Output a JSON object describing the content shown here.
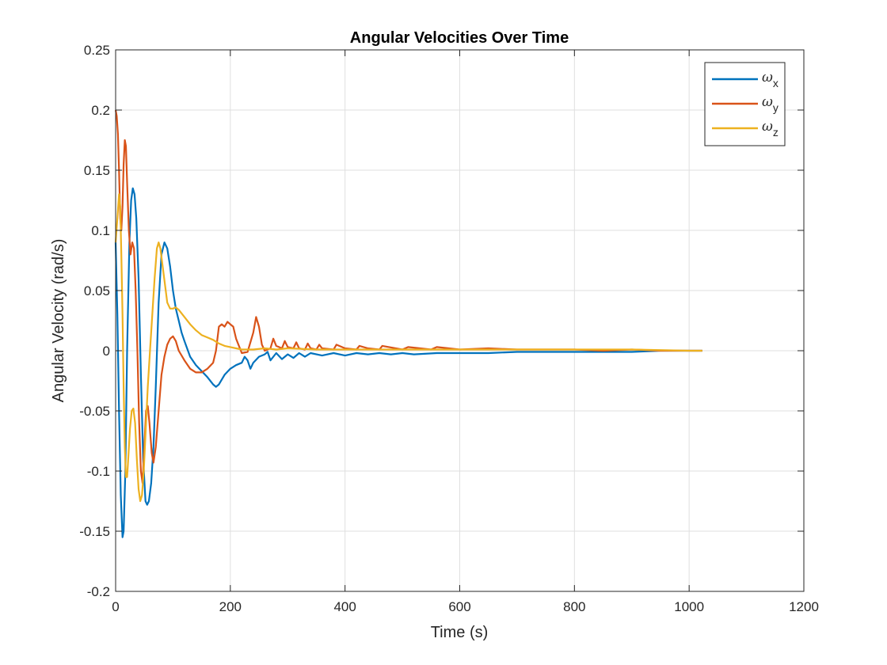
{
  "chart_data": {
    "type": "line",
    "title": "Angular Velocities Over Time",
    "xlabel": "Time (s)",
    "ylabel": "Angular Velocity (rad/s)",
    "xlim": [
      0,
      1200
    ],
    "ylim": [
      -0.2,
      0.25
    ],
    "xticks": [
      0,
      200,
      400,
      600,
      800,
      1000,
      1200
    ],
    "xtick_labels": [
      "0",
      "200",
      "400",
      "600",
      "800",
      "1000",
      "1200"
    ],
    "yticks": [
      -0.2,
      -0.15,
      -0.1,
      -0.05,
      0,
      0.05,
      0.1,
      0.15,
      0.2,
      0.25
    ],
    "ytick_labels": [
      "-0.2",
      "-0.15",
      "-0.1",
      "-0.05",
      "0",
      "0.05",
      "0.1",
      "0.15",
      "0.2",
      "0.25"
    ],
    "grid": true,
    "legend_position": "top-right",
    "series": [
      {
        "name": "ω",
        "subscript": "x",
        "color": "#0072BD",
        "points": [
          [
            0,
            0.09
          ],
          [
            3,
            0.03
          ],
          [
            6,
            -0.05
          ],
          [
            9,
            -0.12
          ],
          [
            12,
            -0.155
          ],
          [
            14,
            -0.15
          ],
          [
            17,
            -0.1
          ],
          [
            20,
            0.0
          ],
          [
            24,
            0.09
          ],
          [
            27,
            0.125
          ],
          [
            30,
            0.135
          ],
          [
            33,
            0.13
          ],
          [
            36,
            0.11
          ],
          [
            40,
            0.06
          ],
          [
            44,
            -0.02
          ],
          [
            48,
            -0.09
          ],
          [
            52,
            -0.125
          ],
          [
            55,
            -0.128
          ],
          [
            58,
            -0.125
          ],
          [
            62,
            -0.11
          ],
          [
            66,
            -0.08
          ],
          [
            70,
            -0.03
          ],
          [
            75,
            0.04
          ],
          [
            80,
            0.08
          ],
          [
            85,
            0.09
          ],
          [
            90,
            0.085
          ],
          [
            95,
            0.07
          ],
          [
            100,
            0.05
          ],
          [
            105,
            0.035
          ],
          [
            110,
            0.025
          ],
          [
            115,
            0.015
          ],
          [
            120,
            0.008
          ],
          [
            130,
            -0.005
          ],
          [
            140,
            -0.012
          ],
          [
            150,
            -0.017
          ],
          [
            160,
            -0.022
          ],
          [
            170,
            -0.028
          ],
          [
            175,
            -0.03
          ],
          [
            180,
            -0.028
          ],
          [
            190,
            -0.02
          ],
          [
            200,
            -0.015
          ],
          [
            210,
            -0.012
          ],
          [
            220,
            -0.01
          ],
          [
            225,
            -0.005
          ],
          [
            230,
            -0.008
          ],
          [
            235,
            -0.015
          ],
          [
            240,
            -0.01
          ],
          [
            250,
            -0.005
          ],
          [
            260,
            -0.003
          ],
          [
            265,
            -0.001
          ],
          [
            270,
            -0.008
          ],
          [
            280,
            -0.002
          ],
          [
            290,
            -0.007
          ],
          [
            300,
            -0.003
          ],
          [
            310,
            -0.006
          ],
          [
            320,
            -0.002
          ],
          [
            330,
            -0.005
          ],
          [
            340,
            -0.002
          ],
          [
            360,
            -0.004
          ],
          [
            380,
            -0.002
          ],
          [
            400,
            -0.004
          ],
          [
            420,
            -0.002
          ],
          [
            440,
            -0.003
          ],
          [
            460,
            -0.002
          ],
          [
            480,
            -0.003
          ],
          [
            500,
            -0.002
          ],
          [
            520,
            -0.003
          ],
          [
            560,
            -0.002
          ],
          [
            600,
            -0.002
          ],
          [
            650,
            -0.002
          ],
          [
            700,
            -0.001
          ],
          [
            750,
            -0.001
          ],
          [
            800,
            -0.001
          ],
          [
            850,
            -0.001
          ],
          [
            900,
            -0.001
          ],
          [
            950,
            0.0
          ],
          [
            1000,
            0.0
          ],
          [
            1023,
            0.0
          ]
        ]
      },
      {
        "name": "ω",
        "subscript": "y",
        "color": "#D95319",
        "points": [
          [
            0,
            0.2
          ],
          [
            2,
            0.195
          ],
          [
            4,
            0.18
          ],
          [
            6,
            0.15
          ],
          [
            8,
            0.11
          ],
          [
            10,
            0.1
          ],
          [
            12,
            0.12
          ],
          [
            14,
            0.155
          ],
          [
            16,
            0.175
          ],
          [
            18,
            0.17
          ],
          [
            20,
            0.14
          ],
          [
            23,
            0.1
          ],
          [
            26,
            0.08
          ],
          [
            29,
            0.09
          ],
          [
            32,
            0.085
          ],
          [
            35,
            0.05
          ],
          [
            38,
            0.0
          ],
          [
            41,
            -0.06
          ],
          [
            44,
            -0.1
          ],
          [
            47,
            -0.11
          ],
          [
            50,
            -0.08
          ],
          [
            53,
            -0.05
          ],
          [
            56,
            -0.046
          ],
          [
            59,
            -0.06
          ],
          [
            63,
            -0.085
          ],
          [
            66,
            -0.093
          ],
          [
            70,
            -0.08
          ],
          [
            75,
            -0.05
          ],
          [
            80,
            -0.02
          ],
          [
            85,
            -0.005
          ],
          [
            90,
            0.005
          ],
          [
            95,
            0.01
          ],
          [
            100,
            0.012
          ],
          [
            105,
            0.008
          ],
          [
            110,
            0.0
          ],
          [
            120,
            -0.008
          ],
          [
            130,
            -0.015
          ],
          [
            140,
            -0.018
          ],
          [
            150,
            -0.018
          ],
          [
            160,
            -0.015
          ],
          [
            170,
            -0.01
          ],
          [
            175,
            0.0
          ],
          [
            180,
            0.02
          ],
          [
            185,
            0.022
          ],
          [
            190,
            0.02
          ],
          [
            195,
            0.024
          ],
          [
            200,
            0.022
          ],
          [
            205,
            0.02
          ],
          [
            210,
            0.01
          ],
          [
            220,
            -0.002
          ],
          [
            230,
            -0.001
          ],
          [
            240,
            0.015
          ],
          [
            245,
            0.028
          ],
          [
            250,
            0.02
          ],
          [
            255,
            0.005
          ],
          [
            260,
            0.0
          ],
          [
            270,
            0.002
          ],
          [
            275,
            0.01
          ],
          [
            280,
            0.004
          ],
          [
            290,
            0.002
          ],
          [
            295,
            0.008
          ],
          [
            300,
            0.003
          ],
          [
            310,
            0.002
          ],
          [
            315,
            0.007
          ],
          [
            320,
            0.002
          ],
          [
            330,
            0.001
          ],
          [
            335,
            0.006
          ],
          [
            340,
            0.002
          ],
          [
            350,
            0.001
          ],
          [
            355,
            0.005
          ],
          [
            360,
            0.002
          ],
          [
            380,
            0.001
          ],
          [
            385,
            0.005
          ],
          [
            400,
            0.002
          ],
          [
            420,
            0.001
          ],
          [
            425,
            0.004
          ],
          [
            440,
            0.002
          ],
          [
            460,
            0.001
          ],
          [
            465,
            0.004
          ],
          [
            500,
            0.001
          ],
          [
            510,
            0.003
          ],
          [
            550,
            0.001
          ],
          [
            560,
            0.003
          ],
          [
            600,
            0.001
          ],
          [
            650,
            0.002
          ],
          [
            700,
            0.001
          ],
          [
            750,
            0.001
          ],
          [
            800,
            0.001
          ],
          [
            850,
            0.0
          ],
          [
            900,
            0.001
          ],
          [
            950,
            0.0
          ],
          [
            1000,
            0.0
          ],
          [
            1023,
            0.0
          ]
        ]
      },
      {
        "name": "ω",
        "subscript": "z",
        "color": "#EDB120",
        "points": [
          [
            0,
            0.09
          ],
          [
            3,
            0.11
          ],
          [
            6,
            0.13
          ],
          [
            8,
            0.12
          ],
          [
            10,
            0.08
          ],
          [
            12,
            0.03
          ],
          [
            14,
            -0.03
          ],
          [
            16,
            -0.08
          ],
          [
            18,
            -0.105
          ],
          [
            20,
            -0.105
          ],
          [
            22,
            -0.09
          ],
          [
            25,
            -0.065
          ],
          [
            28,
            -0.05
          ],
          [
            31,
            -0.048
          ],
          [
            34,
            -0.06
          ],
          [
            37,
            -0.09
          ],
          [
            40,
            -0.115
          ],
          [
            43,
            -0.125
          ],
          [
            46,
            -0.12
          ],
          [
            49,
            -0.1
          ],
          [
            52,
            -0.07
          ],
          [
            56,
            -0.03
          ],
          [
            60,
            0.0
          ],
          [
            64,
            0.03
          ],
          [
            68,
            0.06
          ],
          [
            72,
            0.085
          ],
          [
            75,
            0.09
          ],
          [
            78,
            0.085
          ],
          [
            82,
            0.07
          ],
          [
            86,
            0.055
          ],
          [
            90,
            0.04
          ],
          [
            95,
            0.035
          ],
          [
            100,
            0.035
          ],
          [
            105,
            0.036
          ],
          [
            110,
            0.034
          ],
          [
            120,
            0.028
          ],
          [
            130,
            0.022
          ],
          [
            140,
            0.017
          ],
          [
            150,
            0.013
          ],
          [
            160,
            0.011
          ],
          [
            170,
            0.009
          ],
          [
            180,
            0.006
          ],
          [
            190,
            0.004
          ],
          [
            200,
            0.003
          ],
          [
            210,
            0.002
          ],
          [
            220,
            0.001
          ],
          [
            240,
            0.001
          ],
          [
            260,
            0.002
          ],
          [
            280,
            0.001
          ],
          [
            300,
            0.002
          ],
          [
            350,
            0.001
          ],
          [
            400,
            0.001
          ],
          [
            500,
            0.001
          ],
          [
            600,
            0.001
          ],
          [
            700,
            0.001
          ],
          [
            800,
            0.001
          ],
          [
            900,
            0.001
          ],
          [
            1000,
            0.0
          ],
          [
            1023,
            0.0
          ]
        ]
      }
    ]
  }
}
